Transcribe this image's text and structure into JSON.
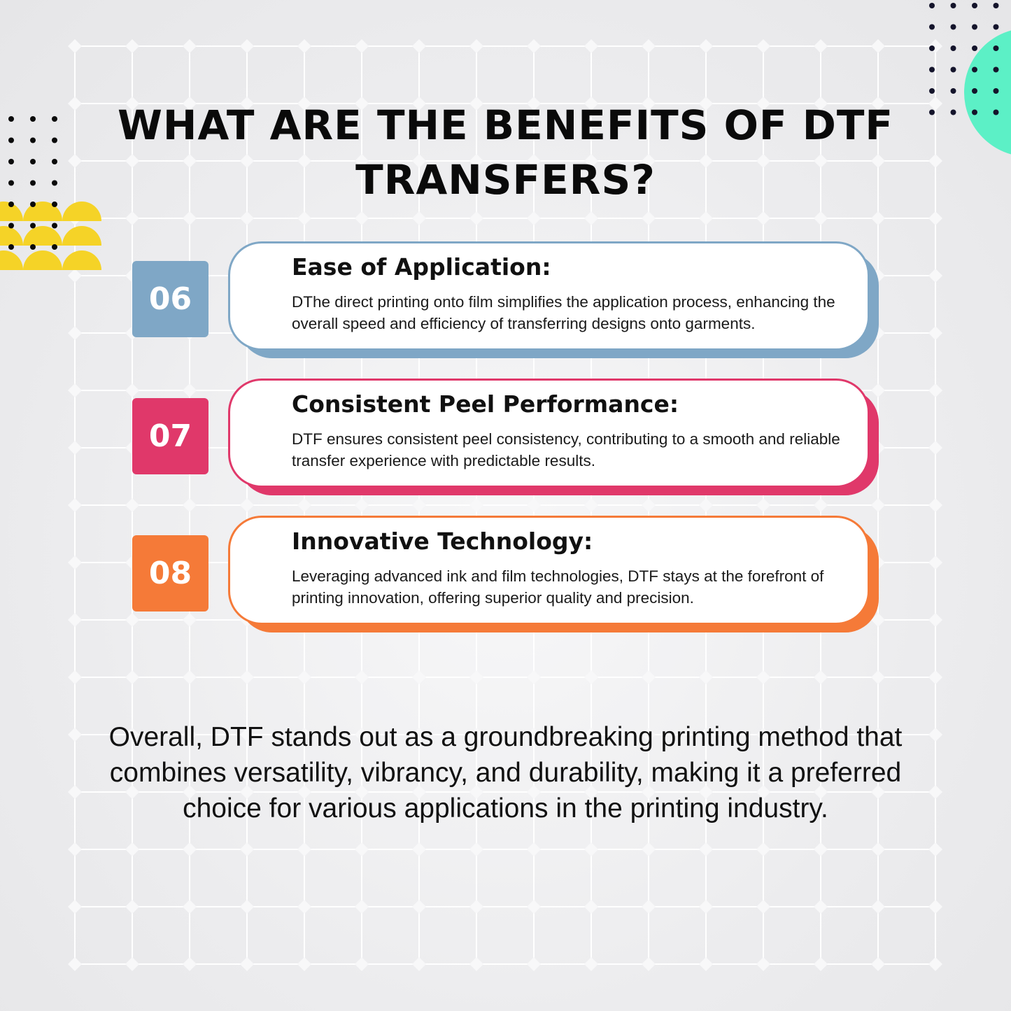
{
  "title": "WHAT ARE THE BENEFITS OF DTF TRANSFERS?",
  "benefits": [
    {
      "number": "06",
      "heading": "Ease of Application:",
      "text": "DThe direct printing onto film simplifies the application process, enhancing the overall speed and efficiency of transferring designs onto garments.",
      "color": "#7fa7c6"
    },
    {
      "number": "07",
      "heading": "Consistent Peel Performance:",
      "text": "DTF ensures consistent peel consistency, contributing to a smooth and reliable transfer experience with predictable results.",
      "color": "#e0386a"
    },
    {
      "number": "08",
      "heading": "Innovative Technology:",
      "text": "Leveraging advanced ink and film technologies, DTF stays at the forefront of printing innovation, offering superior quality and precision.",
      "color": "#f57a38"
    }
  ],
  "summary": "Overall, DTF stands out as a groundbreaking printing method that combines versatility, vibrancy, and durability, making it a preferred choice for various applications in the printing industry.",
  "colors": {
    "accent_yellow": "#f5d327",
    "accent_mint": "#5cf0c6"
  }
}
